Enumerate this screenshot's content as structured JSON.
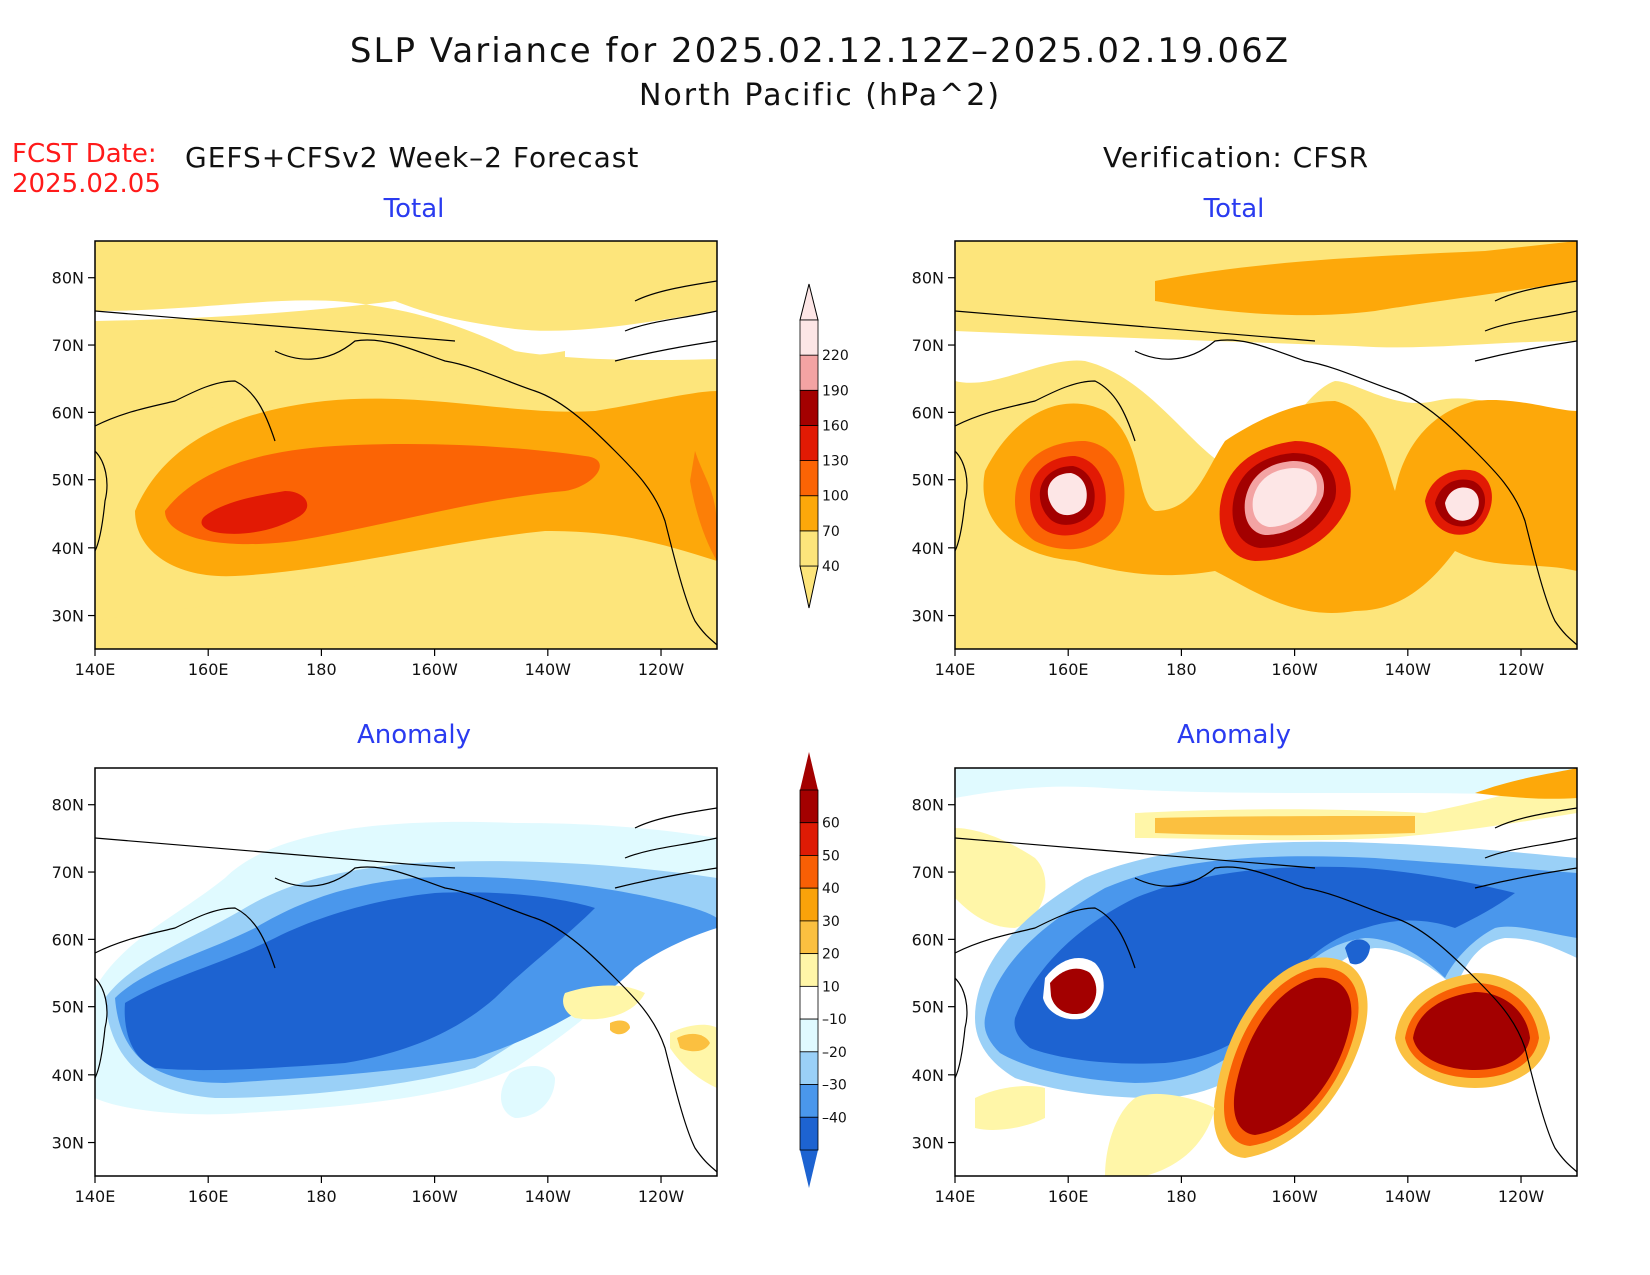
{
  "title_line1": "SLP Variance for 2025.02.12.12Z–2025.02.19.06Z",
  "title_line2": "North Pacific (hPa^2)",
  "fcst_date_label": "FCST Date:",
  "fcst_date_value": "2025.02.05",
  "left_column_title": "GEFS+CFSv2 Week–2 Forecast",
  "right_column_title": "Verification: CFSR",
  "panel_labels": {
    "total": "Total",
    "anomaly": "Anomaly"
  },
  "lat_ticks": [
    "80N",
    "70N",
    "60N",
    "50N",
    "40N",
    "30N"
  ],
  "lon_ticks": [
    "140E",
    "160E",
    "180",
    "160W",
    "140W",
    "120W"
  ],
  "total_colorbar": {
    "levels": [
      "40",
      "70",
      "100",
      "130",
      "160",
      "190",
      "220"
    ],
    "colors": [
      "#fde57b",
      "#fda80a",
      "#fb6405",
      "#e21a04",
      "#a30000",
      "#f3a3a3",
      "#fde6e6"
    ]
  },
  "anomaly_colorbar": {
    "levels": [
      "60",
      "50",
      "40",
      "30",
      "20",
      "10",
      "–10",
      "–20",
      "–30",
      "–40"
    ],
    "colors": [
      "#a30000",
      "#de1b05",
      "#f85f05",
      "#f9a20a",
      "#fbc040",
      "#fff6a8",
      "#ffffff",
      "#e0faff",
      "#9ad0f7",
      "#4a97ec",
      "#1d63d1"
    ]
  }
}
